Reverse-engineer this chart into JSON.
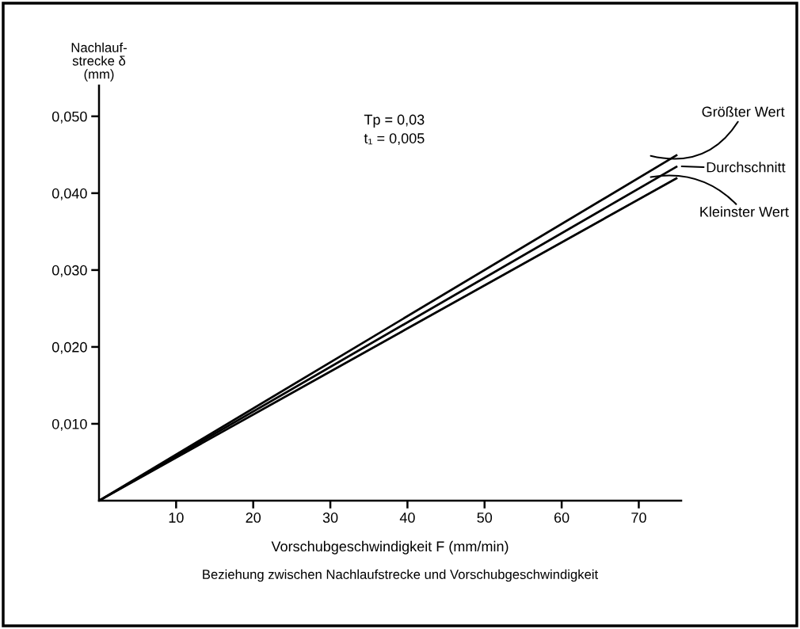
{
  "chart_data": {
    "type": "line",
    "xlabel": "Vorschubgeschwindigkeit F (mm/min)",
    "ylabel": "Nachlauf-\nstrecke δ\n(mm)",
    "x": [
      0,
      75
    ],
    "series": [
      {
        "name": "Größter Wert",
        "color": "#000000",
        "values": [
          0,
          0.045
        ]
      },
      {
        "name": "Durchschnitt",
        "color": "#000000",
        "values": [
          0,
          0.0435
        ]
      },
      {
        "name": "Kleinster Wert",
        "color": "#000000",
        "values": [
          0,
          0.042
        ]
      }
    ],
    "xlim": [
      0,
      75.5
    ],
    "xticks": [
      10,
      20,
      30,
      40,
      50,
      60,
      70
    ],
    "ylim": [
      0,
      0.054
    ],
    "yticks": [
      {
        "value": 0.01,
        "label": "0,010"
      },
      {
        "value": 0.02,
        "label": "0,020"
      },
      {
        "value": 0.03,
        "label": "0,030"
      },
      {
        "value": 0.04,
        "label": "0,040"
      },
      {
        "value": 0.05,
        "label": "0,050"
      }
    ],
    "annotations": [
      "Tp = 0,03",
      "t₁ = 0,005",
      "Beziehung zwischen Nachlaufstrecke und Vorschubgeschwindigkeit"
    ],
    "grid": false,
    "legend": "right",
    "marker": "none",
    "line_style": "solid"
  }
}
